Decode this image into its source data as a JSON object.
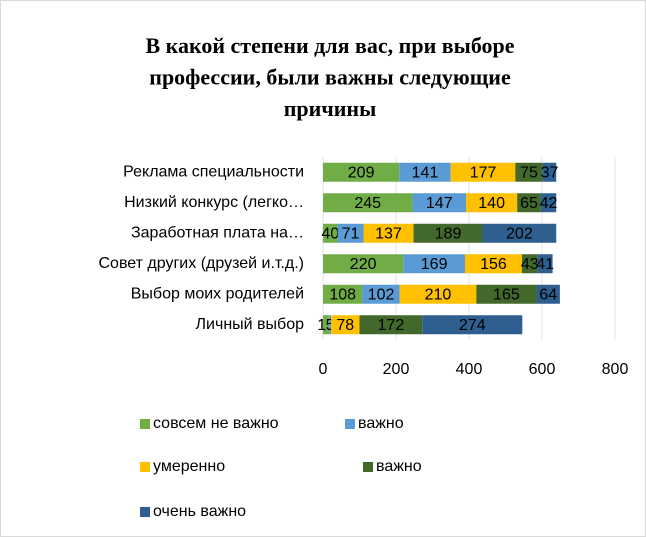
{
  "chart_data": {
    "type": "stacked-barh",
    "title": [
      "В какой степени для вас, при выборе",
      "профессии, были важны следующие",
      "причины"
    ],
    "categories": [
      "Реклама специальности",
      "Низкий конкурс (легко…",
      "Заработная плата на…",
      "Совет других (друзей и.т.д.)",
      "Выбор моих родителей",
      "Личный выбор"
    ],
    "series": [
      {
        "name": "совсем не важно",
        "color": "#70ad47",
        "values": [
          209,
          245,
          40,
          220,
          108,
          17
        ]
      },
      {
        "name": "важно",
        "color": "#5b9bd5",
        "values": [
          141,
          147,
          71,
          169,
          102,
          5
        ]
      },
      {
        "name": "умеренно",
        "color": "#ffc000",
        "values": [
          177,
          140,
          137,
          156,
          210,
          78
        ]
      },
      {
        "name": "важно",
        "color": "#43682b",
        "values": [
          75,
          65,
          189,
          43,
          165,
          172
        ]
      },
      {
        "name": "очень важно",
        "color": "#2e5f8f",
        "values": [
          37,
          42,
          202,
          41,
          64,
          274
        ]
      }
    ],
    "xlim": [
      0,
      800
    ],
    "xticks": [
      0,
      200,
      400,
      600,
      800
    ],
    "grid": true
  }
}
